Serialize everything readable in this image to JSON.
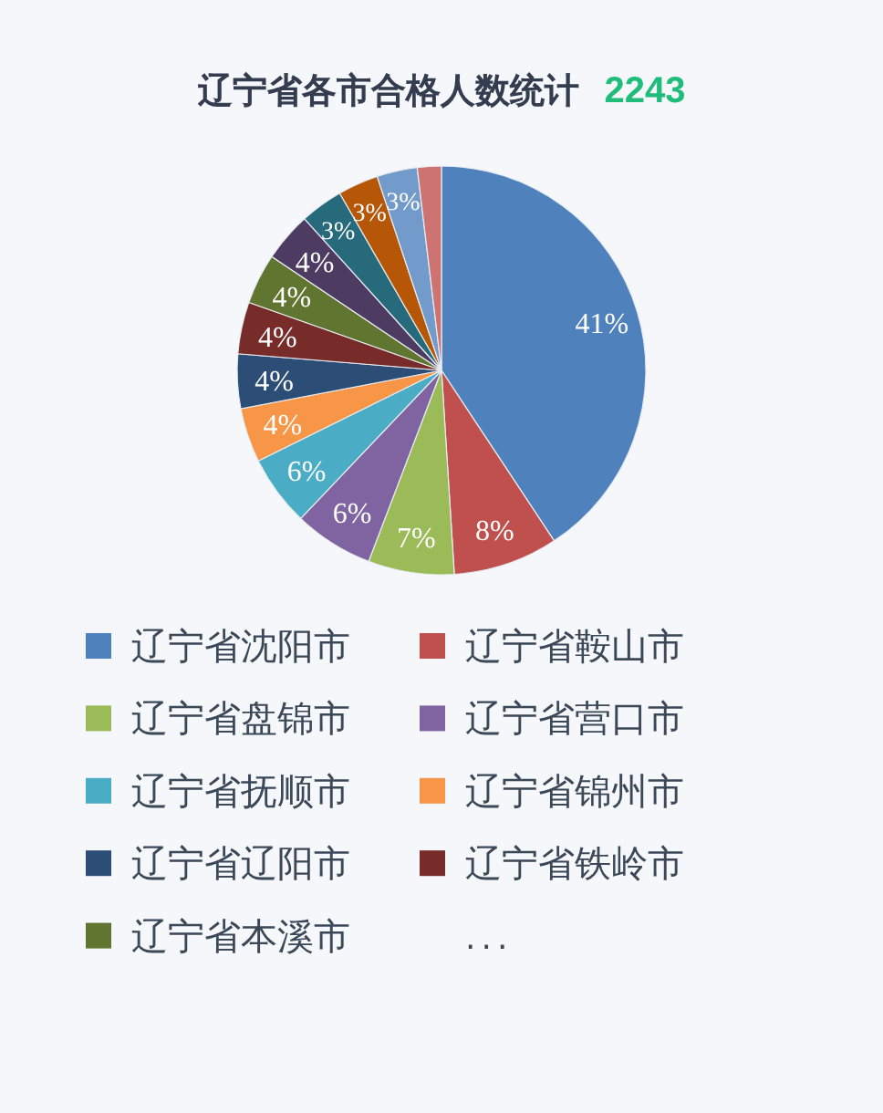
{
  "chart_data": {
    "type": "pie",
    "title": "辽宁省各市合格人数统计",
    "subtitle": "2243",
    "categories": [
      "辽宁省沈阳市",
      "辽宁省鞍山市",
      "辽宁省盘锦市",
      "辽宁省营口市",
      "辽宁省抚顺市",
      "辽宁省锦州市",
      "辽宁省辽阳市",
      "辽宁省铁岭市",
      "辽宁省本溪市",
      null,
      null,
      null,
      null,
      null
    ],
    "values": [
      40.7,
      8.3,
      6.8,
      6.3,
      5.6,
      4.3,
      4.3,
      4.1,
      4.0,
      3.9,
      3.4,
      3.2,
      3.2,
      1.9
    ],
    "colors": [
      "#4f81bd",
      "#c0504d",
      "#9bbb59",
      "#8064a2",
      "#4bacc6",
      "#f79646",
      "#2c4d75",
      "#772c2a",
      "#5f7530",
      "#4d3b62",
      "#276a7c",
      "#b65708",
      "#729aca",
      "#cd7371"
    ],
    "value_labels": [
      "41%",
      "8%",
      "7%",
      "6%",
      "6%",
      "4%",
      "4%",
      "4%",
      "4%",
      "4%",
      "3%",
      "3%",
      "3%",
      null
    ],
    "legend": "bottom",
    "annotations": [
      "..."
    ]
  }
}
